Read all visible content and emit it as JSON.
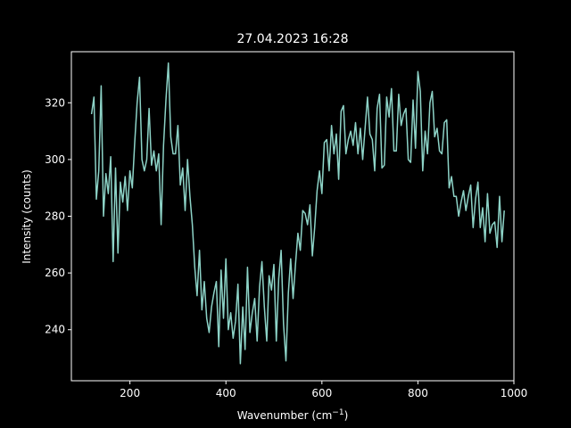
{
  "chart_data": {
    "type": "line",
    "title": "27.04.2023 16:28",
    "xlabel": "Wavenumber (cm",
    "xlabel_sup": "−1",
    "xlabel_suffix": ")",
    "ylabel": "Intensity (counts)",
    "xlim": [
      78,
      1000
    ],
    "ylim": [
      222,
      338
    ],
    "xticks": [
      200,
      400,
      600,
      800,
      1000
    ],
    "yticks": [
      240,
      260,
      280,
      300,
      320
    ],
    "grid": false,
    "line_color": "#8dd3c7",
    "background": "#000000",
    "foreground": "#ffffff",
    "series": [
      {
        "x": [
          120,
          125,
          130,
          135,
          140,
          145,
          150,
          155,
          160,
          165,
          170,
          175,
          180,
          185,
          190,
          195,
          200,
          205,
          210,
          215,
          220,
          225,
          230,
          235,
          240,
          245,
          250,
          255,
          260,
          265,
          270,
          275,
          280,
          285,
          290,
          295,
          300,
          305,
          310,
          315,
          320,
          325,
          330,
          335,
          340,
          345,
          350,
          355,
          360,
          365,
          370,
          375,
          380,
          385,
          390,
          395,
          400,
          405,
          410,
          415,
          420,
          425,
          430,
          435,
          440,
          445,
          450,
          455,
          460,
          465,
          470,
          475,
          480,
          485,
          490,
          495,
          500,
          505,
          510,
          515,
          520,
          525,
          530,
          535,
          540,
          545,
          550,
          555,
          560,
          565,
          570,
          575,
          580,
          585,
          590,
          595,
          600,
          605,
          610,
          615,
          620,
          625,
          630,
          635,
          640,
          645,
          650,
          655,
          660,
          665,
          670,
          675,
          680,
          685,
          690,
          695,
          700,
          705,
          710,
          715,
          720,
          725,
          730,
          735,
          740,
          745,
          750,
          755,
          760,
          765,
          770,
          775,
          780,
          785,
          790,
          795,
          800,
          805,
          810,
          815,
          820,
          825,
          830,
          835,
          840,
          845,
          850,
          855,
          860,
          865,
          870,
          875,
          880,
          885,
          890,
          895,
          900,
          905,
          910,
          915,
          920,
          925,
          930,
          935,
          940,
          945,
          950,
          955,
          960,
          965,
          970,
          975,
          980
        ],
        "y": [
          316,
          322,
          286,
          296,
          326,
          280,
          295,
          288,
          301,
          264,
          297,
          267,
          292,
          285,
          294,
          282,
          296,
          290,
          306,
          320,
          329,
          300,
          296,
          300,
          318,
          298,
          303,
          296,
          302,
          277,
          305,
          321,
          334,
          308,
          302,
          302,
          312,
          291,
          297,
          282,
          300,
          287,
          277,
          262,
          252,
          268,
          247,
          257,
          244,
          239,
          248,
          253,
          257,
          234,
          261,
          244,
          265,
          240,
          246,
          237,
          243,
          256,
          228,
          248,
          233,
          262,
          239,
          246,
          251,
          236,
          255,
          264,
          248,
          236,
          259,
          254,
          263,
          236,
          258,
          268,
          242,
          229,
          253,
          265,
          251,
          263,
          274,
          268,
          282,
          281,
          277,
          284,
          266,
          276,
          289,
          296,
          288,
          306,
          307,
          296,
          312,
          302,
          309,
          293,
          317,
          319,
          302,
          307,
          310,
          305,
          313,
          302,
          311,
          300,
          311,
          322,
          309,
          307,
          296,
          318,
          323,
          297,
          298,
          322,
          315,
          325,
          303,
          303,
          323,
          312,
          316,
          318,
          300,
          299,
          321,
          304,
          331,
          324,
          296,
          310,
          302,
          320,
          324,
          308,
          311,
          303,
          302,
          313,
          314,
          290,
          294,
          287,
          287,
          280,
          285,
          289,
          282,
          287,
          291,
          276,
          286,
          292,
          276,
          283,
          271,
          288,
          274,
          277,
          278,
          269,
          287,
          271,
          282
        ]
      }
    ]
  }
}
